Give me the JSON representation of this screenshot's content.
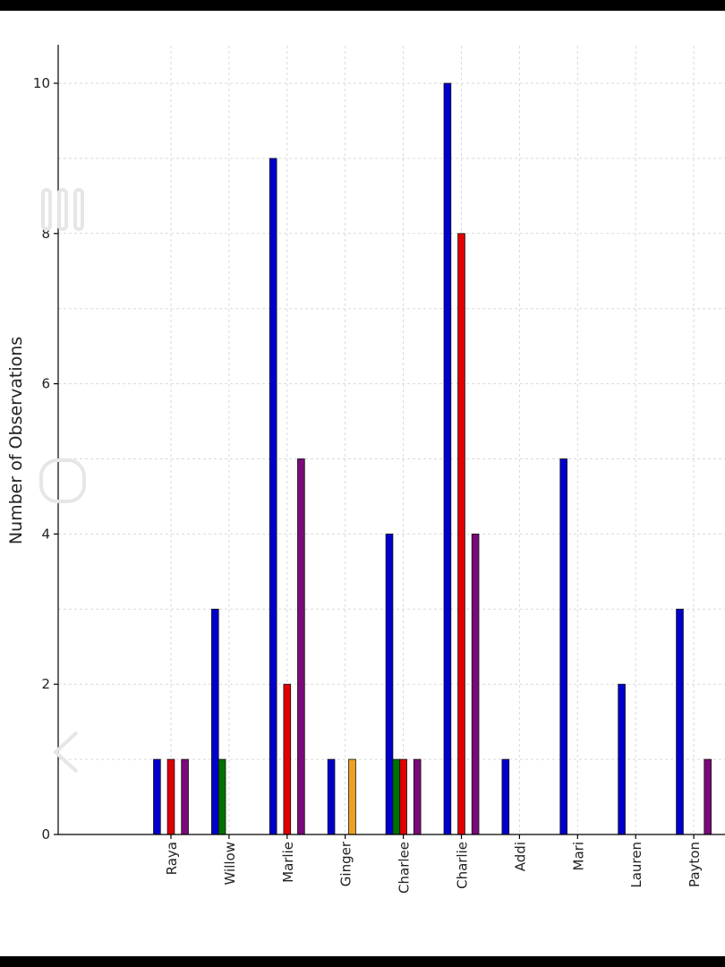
{
  "chart_data": {
    "type": "bar",
    "ylabel": "Number of Observations",
    "xlabel": "",
    "title": "",
    "ylim": [
      0,
      10.5
    ],
    "yticks": [
      0,
      2,
      4,
      6,
      8,
      10
    ],
    "grid": true,
    "legend": "none",
    "categories": [
      "Raya",
      "Willow",
      "Marlie",
      "Ginger",
      "Charlee",
      "Charlie",
      "Addi",
      "Mari",
      "Lauren",
      "Payton"
    ],
    "series": [
      {
        "color": "#0000cc",
        "values": [
          1,
          3,
          9,
          1,
          4,
          10,
          1,
          5,
          2,
          3
        ]
      },
      {
        "color": "#007000",
        "values": [
          0,
          1,
          0,
          0,
          1,
          0,
          0,
          0,
          0,
          0
        ]
      },
      {
        "color": "#e00000",
        "values": [
          1,
          0,
          2,
          0,
          1,
          8,
          0,
          0,
          0,
          0
        ]
      },
      {
        "color": "#f0a020",
        "values": [
          0,
          0,
          0,
          1,
          0,
          0,
          0,
          0,
          0,
          0
        ]
      },
      {
        "color": "#7a0a7a",
        "values": [
          1,
          0,
          5,
          0,
          1,
          4,
          0,
          0,
          0,
          1
        ]
      }
    ]
  }
}
